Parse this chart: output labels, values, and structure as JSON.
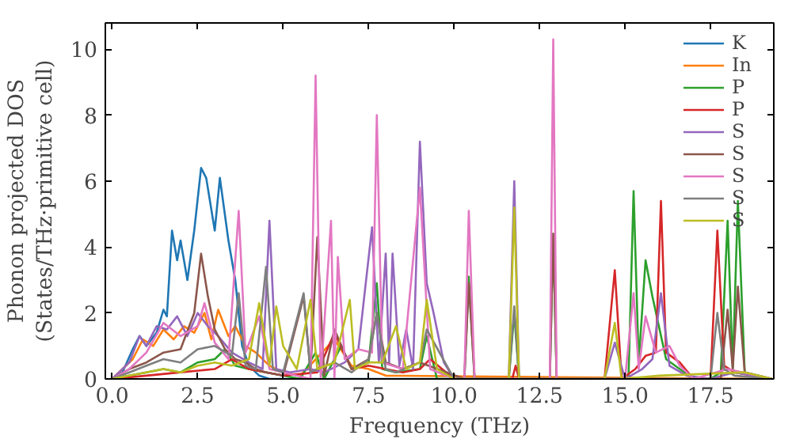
{
  "chart_data": {
    "type": "line",
    "xlabel": "Frequency (THz)",
    "ylabel": "Phonon projected DOS\n(States/THz·primitive cell)",
    "xlim": [
      -0.2,
      19.35
    ],
    "ylim": [
      0,
      10.8
    ],
    "xticks": [
      {
        "value": 0,
        "label": "0.0"
      },
      {
        "value": 2.5,
        "label": "2.5"
      },
      {
        "value": 5,
        "label": "5.0"
      },
      {
        "value": 7.5,
        "label": "7.5"
      },
      {
        "value": 10,
        "label": "10.0"
      },
      {
        "value": 12.5,
        "label": "12.5"
      },
      {
        "value": 15,
        "label": "15.0"
      },
      {
        "value": 17.5,
        "label": "17.5"
      }
    ],
    "yticks": [
      0,
      2,
      4,
      6,
      8,
      10
    ],
    "grid": false,
    "legend": "top right",
    "marker": "none",
    "line_style": "solid",
    "series": [
      {
        "name": "K",
        "color": "#1f77b4",
        "x": [
          0,
          0.3,
          0.6,
          0.8,
          1.0,
          1.3,
          1.5,
          1.6,
          1.75,
          1.9,
          2.0,
          2.2,
          2.4,
          2.6,
          2.75,
          3.0,
          3.15,
          3.4,
          3.6,
          3.8,
          4.0,
          4.3,
          4.6,
          19.3
        ],
        "values": [
          0,
          0.2,
          0.9,
          1.3,
          1.0,
          1.4,
          2.1,
          1.9,
          4.5,
          3.6,
          4.2,
          3.0,
          4.5,
          6.4,
          6.1,
          4.5,
          6.1,
          4.2,
          3.0,
          1.0,
          0.4,
          0.1,
          0,
          0
        ]
      },
      {
        "name": "In",
        "color": "#ff7f0e",
        "x": [
          0,
          0.3,
          0.6,
          0.9,
          1.2,
          1.5,
          1.8,
          2.1,
          2.4,
          2.7,
          2.9,
          3.1,
          3.4,
          3.6,
          3.9,
          4.2,
          4.6,
          5.0,
          5.5,
          6.5,
          7.0,
          7.5,
          8.0,
          19.3
        ],
        "values": [
          0,
          0.3,
          0.6,
          1.2,
          1.0,
          1.5,
          1.2,
          1.6,
          1.4,
          2.0,
          1.2,
          2.1,
          1.3,
          1.6,
          1.0,
          0.8,
          0.4,
          0.2,
          0.1,
          1.2,
          0.4,
          0.3,
          0.1,
          0
        ]
      },
      {
        "name": "P",
        "color": "#2ca02c",
        "x": [
          0,
          0.5,
          1.0,
          1.5,
          2.0,
          2.5,
          3.0,
          3.3,
          3.6,
          4.0,
          4.5,
          5.0,
          5.5,
          5.95,
          6.2,
          6.7,
          7.0,
          7.5,
          7.74,
          7.9,
          8.3,
          9.0,
          9.2,
          9.5,
          10.3,
          10.43,
          10.6,
          11.6,
          11.76,
          11.9,
          12.8,
          12.9,
          13.0,
          14.5,
          15.1,
          15.25,
          15.4,
          15.6,
          15.8,
          16.2,
          16.6,
          17.0,
          17.5,
          17.8,
          18.0,
          18.15,
          18.3,
          18.5,
          19.3
        ],
        "values": [
          0,
          0.1,
          0.2,
          0.3,
          0.2,
          0.5,
          0.6,
          0.9,
          0.4,
          0.3,
          0.2,
          0.1,
          0,
          0.8,
          0,
          1.0,
          0.3,
          0.5,
          2.9,
          0.3,
          0.2,
          0.3,
          1.3,
          0,
          0,
          3.1,
          0,
          0,
          2.0,
          0,
          0,
          4.4,
          0,
          0,
          0,
          5.7,
          0.5,
          3.6,
          2.5,
          0.6,
          0.3,
          0,
          0,
          0.2,
          4.8,
          0.3,
          5.4,
          0.2,
          0
        ]
      },
      {
        "name": "P",
        "color": "#d62728",
        "x": [
          0,
          1,
          2,
          3,
          3.5,
          4,
          5,
          6,
          6.5,
          7,
          7.5,
          8,
          8.5,
          9,
          9.3,
          10,
          11.7,
          11.8,
          11.9,
          14.4,
          14.7,
          14.9,
          15.3,
          15.6,
          15.9,
          16.05,
          16.2,
          16.6,
          17.0,
          17.5,
          17.7,
          17.9,
          18.2,
          19.3
        ],
        "values": [
          0,
          0.1,
          0.2,
          0.3,
          0.6,
          0.3,
          0.1,
          0.2,
          1.4,
          0.3,
          0.4,
          0.3,
          0.2,
          0.3,
          0.6,
          0,
          0,
          0.4,
          0,
          0,
          3.3,
          0,
          0.3,
          0.7,
          0.8,
          5.4,
          0.8,
          0.5,
          0,
          0,
          4.5,
          0.4,
          0.2,
          0
        ]
      },
      {
        "name": "S",
        "color": "#9467bd",
        "x": [
          0,
          0.5,
          0.8,
          1.0,
          1.3,
          1.6,
          1.9,
          2.2,
          2.5,
          2.8,
          3.1,
          3.5,
          4.0,
          4.4,
          4.6,
          4.8,
          5.2,
          5.8,
          6.2,
          6.8,
          7.2,
          7.6,
          7.8,
          8.0,
          8.1,
          8.2,
          8.4,
          8.6,
          8.8,
          9.0,
          9.2,
          9.4,
          9.7,
          10.0,
          11.6,
          11.76,
          11.9,
          14.4,
          14.7,
          15.0,
          15.5,
          15.8,
          16.05,
          16.3,
          16.8,
          17.5,
          18.2,
          19.3
        ],
        "values": [
          0,
          0.5,
          1.3,
          1.0,
          1.6,
          1.5,
          1.9,
          1.3,
          2.0,
          1.6,
          1.3,
          0.8,
          0.5,
          0.3,
          4.8,
          0.3,
          0.2,
          0.3,
          0.2,
          0.5,
          0.9,
          4.6,
          0.5,
          3.8,
          0.5,
          3.8,
          0.4,
          1.5,
          0.3,
          7.2,
          2.9,
          2.0,
          0.5,
          0,
          0,
          6.0,
          0,
          0,
          1.1,
          0,
          0.3,
          0.6,
          2.6,
          0.4,
          0.1,
          0,
          0.2,
          0
        ]
      },
      {
        "name": "S",
        "color": "#8c564b",
        "x": [
          0,
          0.5,
          1.0,
          1.5,
          2.0,
          2.4,
          2.6,
          2.8,
          3.0,
          3.3,
          3.6,
          3.9,
          4.2,
          4.5,
          5.0,
          5.6,
          5.8,
          6.0,
          6.2,
          6.5,
          7.0,
          7.5,
          7.74,
          8.0,
          8.5,
          9.0,
          10.3,
          10.43,
          10.6,
          12.8,
          12.9,
          13.0,
          17.8,
          18.0,
          18.15,
          18.3,
          18.5,
          19.3
        ],
        "values": [
          0,
          0.3,
          0.5,
          0.8,
          0.9,
          2.0,
          3.8,
          2.5,
          1.5,
          0.9,
          0.6,
          0.5,
          0.3,
          0.2,
          0.1,
          2.5,
          0.2,
          4.3,
          0.1,
          1.5,
          0.3,
          0.6,
          2.0,
          0.5,
          0.3,
          0.5,
          0,
          2.9,
          0,
          0,
          4.4,
          0,
          0,
          2.1,
          0.3,
          2.8,
          0.2,
          0
        ]
      },
      {
        "name": "S",
        "color": "#e377c2",
        "x": [
          0,
          0.5,
          1.0,
          1.5,
          2.0,
          2.5,
          2.7,
          3.0,
          3.4,
          3.7,
          3.9,
          4.3,
          4.6,
          5.0,
          5.8,
          5.95,
          6.1,
          6.4,
          6.5,
          6.6,
          6.8,
          7.2,
          7.6,
          7.74,
          7.9,
          8.5,
          9.0,
          9.3,
          10.0,
          10.3,
          10.43,
          10.6,
          12.8,
          12.9,
          13.0,
          15.0,
          15.25,
          15.4,
          15.6,
          15.9,
          16.3,
          16.6,
          17.0,
          18.0,
          19.3
        ],
        "values": [
          0,
          0.3,
          0.8,
          1.7,
          1.3,
          1.6,
          2.3,
          1.1,
          0.6,
          5.1,
          0.8,
          1.9,
          0.3,
          0.2,
          0,
          9.2,
          0,
          4.8,
          0,
          3.7,
          0.6,
          0.9,
          0.8,
          8.0,
          0.5,
          0.3,
          5.8,
          0.3,
          0,
          0,
          5.1,
          0,
          0,
          10.3,
          0,
          0,
          2.6,
          0.3,
          1.9,
          0.8,
          1.0,
          0.4,
          0,
          0.3,
          0
        ]
      },
      {
        "name": "S",
        "color": "#7f7f7f",
        "x": [
          0,
          0.5,
          1.0,
          1.5,
          2.0,
          2.5,
          3.0,
          3.5,
          3.7,
          3.9,
          4.2,
          4.5,
          4.7,
          5.0,
          5.6,
          5.8,
          6.0,
          6.5,
          7.0,
          7.5,
          7.74,
          8.0,
          8.3,
          9.0,
          9.2,
          10.0,
          11.6,
          11.76,
          11.9,
          17.5,
          17.7,
          17.9,
          18.2,
          19.3
        ],
        "values": [
          0,
          0.2,
          0.4,
          0.6,
          0.5,
          0.9,
          1.0,
          0.7,
          2.6,
          0.4,
          0.3,
          3.4,
          0.3,
          0.2,
          2.6,
          0.2,
          0.3,
          0.5,
          0.2,
          0.6,
          2.0,
          0.3,
          0.2,
          0.5,
          1.5,
          0,
          0,
          2.2,
          0,
          0,
          2.0,
          0.3,
          0.1,
          0
        ]
      },
      {
        "name": "S",
        "color": "#bcbd22",
        "x": [
          0,
          0.5,
          1.0,
          1.5,
          2.0,
          2.5,
          3.0,
          3.5,
          4.0,
          4.3,
          4.6,
          4.8,
          5.0,
          5.4,
          5.8,
          6.0,
          6.5,
          6.95,
          7.1,
          7.5,
          7.9,
          8.3,
          8.6,
          9.0,
          9.2,
          9.5,
          10.0,
          11.6,
          11.76,
          11.9,
          14.4,
          14.7,
          14.9,
          16.0,
          18.5,
          19.3
        ],
        "values": [
          0,
          0.1,
          0.2,
          0.3,
          0.2,
          0.4,
          0.5,
          0.4,
          0.6,
          2.3,
          0.4,
          2.2,
          1.0,
          0.3,
          2.4,
          0.3,
          0.5,
          2.4,
          0.3,
          0.5,
          0.5,
          1.6,
          0.3,
          0.5,
          2.4,
          0.3,
          0,
          0,
          5.2,
          0,
          0,
          1.7,
          0,
          0.1,
          0.2,
          0
        ]
      }
    ]
  }
}
